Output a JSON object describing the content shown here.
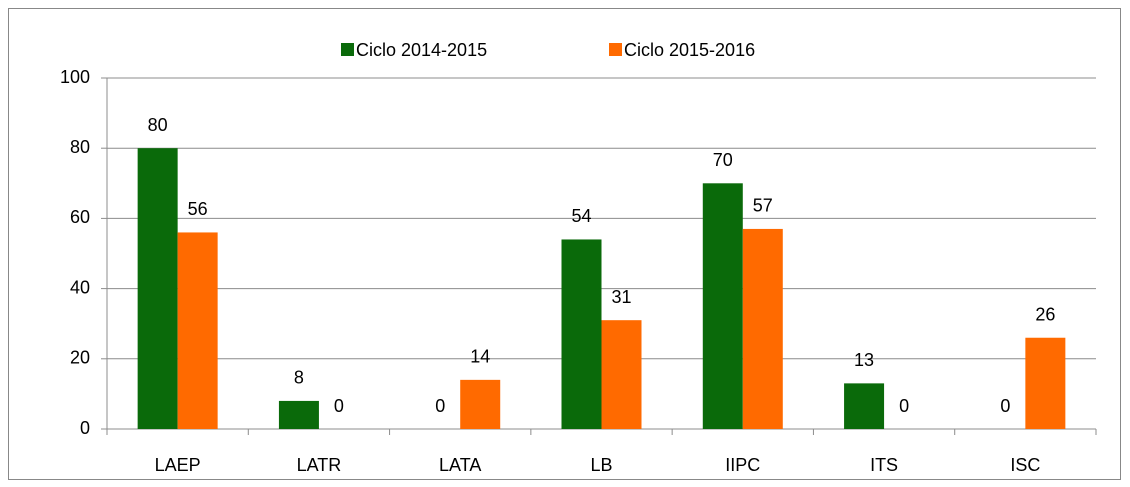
{
  "chart_data": {
    "type": "bar",
    "categories": [
      "LAEP",
      "LATR",
      "LATA",
      "LB",
      "IIPC",
      "ITS",
      "ISC"
    ],
    "series": [
      {
        "name": "Ciclo 2014-2015",
        "color": "#0a6a0a",
        "values": [
          80,
          8,
          0,
          54,
          70,
          13,
          0
        ]
      },
      {
        "name": "Ciclo 2015-2016",
        "color": "#ff6a00",
        "values": [
          56,
          0,
          14,
          31,
          57,
          0,
          26
        ]
      }
    ],
    "ylim": [
      0,
      100
    ],
    "yticks": [
      0,
      20,
      40,
      60,
      80,
      100
    ],
    "grid": true,
    "legend": "top"
  }
}
